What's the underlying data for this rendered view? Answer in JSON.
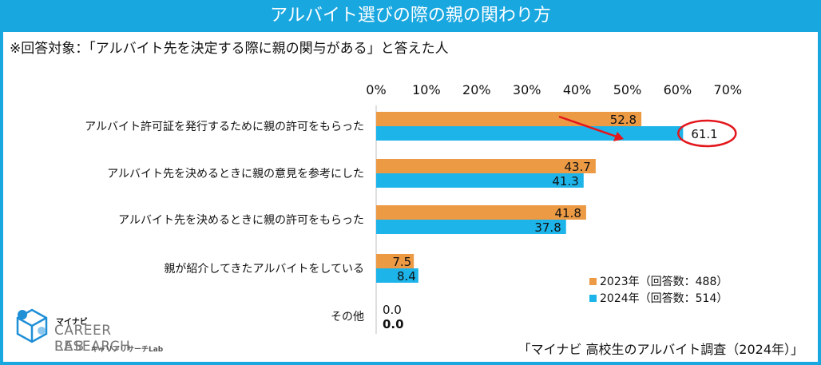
{
  "header": {
    "title": "アルバイト選びの際の親の関わり方",
    "subtitle": "※回答対象：「アルバイト先を決定する際に親の関与がある」と答えた人"
  },
  "source": "「マイナビ 高校生のアルバイト調査（2024年）」",
  "logo": {
    "brand": "マイナビ",
    "line1": "CAREER RESEARCH",
    "line2": "LAB",
    "kana": "キャリアリサーチLab"
  },
  "colors": {
    "accent": "#19a7e0",
    "series2023": "#ed9a45",
    "series2024": "#1db4ea",
    "highlight": "#e3161c"
  },
  "chart_data": {
    "type": "bar",
    "orientation": "horizontal",
    "title": "アルバイト選びの際の親の関わり方",
    "categories": [
      "アルバイト許可証を発行するために親の許可をもらった",
      "アルバイト先を決めるときに親の意見を参考にした",
      "アルバイト先を決めるときに親の許可をもらった",
      "親が紹介してきたアルバイトをしている",
      "その他"
    ],
    "series": [
      {
        "name": "2023年（回答数：488）",
        "values": [
          52.8,
          43.7,
          41.8,
          7.5,
          0.0
        ],
        "labels": [
          "52.8",
          "43.7",
          "41.8",
          "7.5",
          "0.0"
        ]
      },
      {
        "name": "2024年（回答数：514）",
        "values": [
          61.1,
          41.3,
          37.8,
          8.4,
          0.0
        ],
        "labels": [
          "61.1",
          "41.3",
          "37.8",
          "8.4",
          "0.0"
        ]
      }
    ],
    "xticks": [
      "0%",
      "10%",
      "20%",
      "30%",
      "40%",
      "50%",
      "60%",
      "70%"
    ],
    "xlim": [
      0,
      70
    ],
    "highlight": {
      "series": 1,
      "category": 0
    },
    "legend_position": "bottom-right"
  }
}
